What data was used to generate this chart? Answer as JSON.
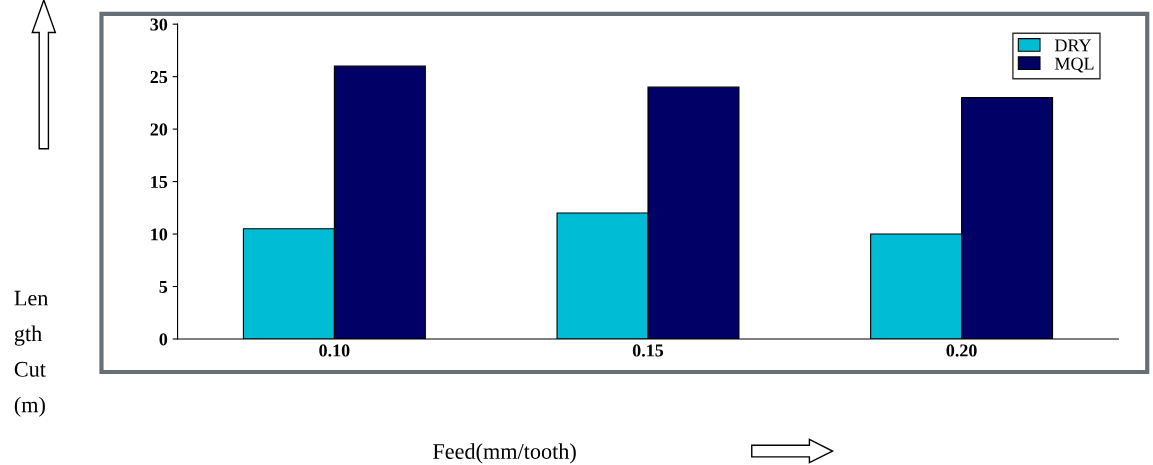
{
  "chart_data": {
    "type": "bar",
    "xlabel": "Feed(mm/tooth)",
    "ylabel": "Len\ngth\nCut\n(m)",
    "categories": [
      "0.10",
      "0.15",
      "0.20"
    ],
    "series": [
      {
        "name": "DRY",
        "color": "#00bcd4",
        "values": [
          10.5,
          12,
          10
        ]
      },
      {
        "name": "MQL",
        "color": "#000066",
        "values": [
          26,
          24,
          23
        ]
      }
    ],
    "ylim": [
      0,
      30
    ],
    "yticks": [
      0,
      5,
      10,
      15,
      20,
      25,
      30
    ],
    "grid": false,
    "legend": "top right"
  }
}
